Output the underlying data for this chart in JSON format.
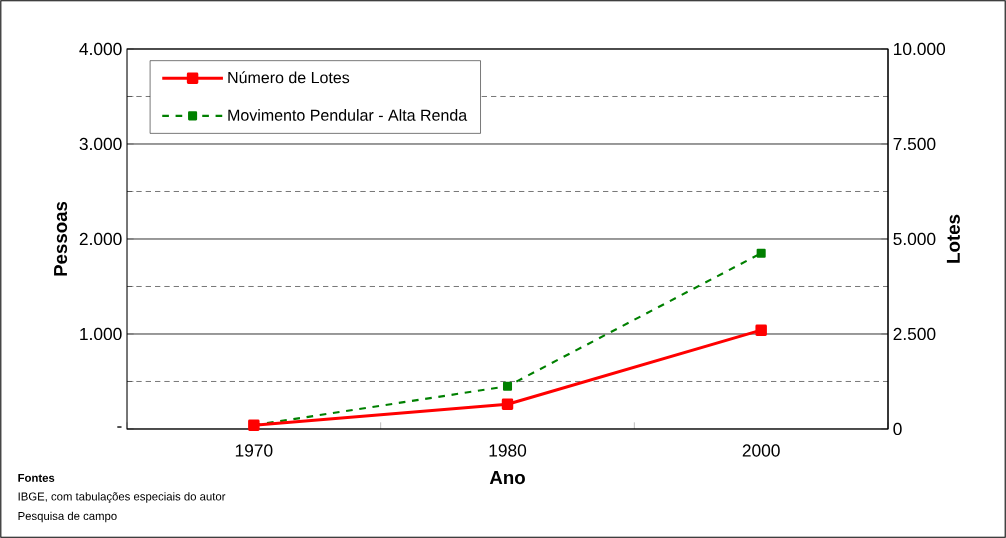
{
  "chart_data": {
    "type": "line",
    "categories": [
      "1970",
      "1980",
      "2000"
    ],
    "series": [
      {
        "name": "Número de Lotes",
        "color": "#ff0000",
        "values": [
          100,
          650,
          2600
        ],
        "axis": "y2",
        "line_style": "solid"
      },
      {
        "name": "Movimento Pendular - Alta Renda",
        "color": "#008000",
        "values": [
          40,
          450,
          1850
        ],
        "axis": "y",
        "line_style": "dashed"
      }
    ],
    "xlabel": "Ano",
    "ylabel": "Pessoas",
    "y2label": "Lotes",
    "ylim": [
      0,
      4000
    ],
    "yticks": [
      {
        "value": 0,
        "label": "-"
      },
      {
        "value": 1000,
        "label": "1.000"
      },
      {
        "value": 2000,
        "label": "2.000"
      },
      {
        "value": 3000,
        "label": "3.000"
      },
      {
        "value": 4000,
        "label": "4.000"
      }
    ],
    "y2lim": [
      0,
      10000
    ],
    "y2ticks": [
      0,
      {
        "value": 2500,
        "label": "2.500"
      },
      {
        "value": 5000,
        "label": "5.000"
      },
      {
        "value": 7500,
        "label": "7.500"
      },
      {
        "value": 10000,
        "label": "10.000"
      }
    ],
    "grid": true,
    "legend": "top left",
    "marker": "square",
    "annotations": [
      "Fontes",
      "IBGE, com tabulações especiais do autor",
      "Pesquisa de campo"
    ]
  }
}
